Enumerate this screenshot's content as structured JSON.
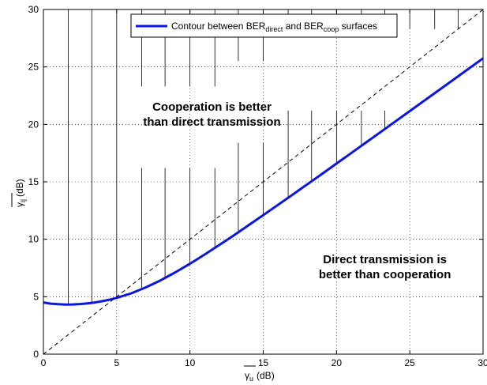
{
  "chart_data": {
    "type": "line",
    "xlim": [
      0,
      30
    ],
    "ylim": [
      0,
      30
    ],
    "xticks": [
      0,
      5,
      10,
      15,
      20,
      25,
      30
    ],
    "yticks": [
      0,
      5,
      10,
      15,
      20,
      25,
      30
    ],
    "grid": true,
    "legend_position": "top-right",
    "xlabel": {
      "symbol": "γ",
      "sub": "u",
      "unit": "(dB)"
    },
    "ylabel": {
      "symbol": "γ",
      "sub": "ij",
      "unit": "(dB)"
    },
    "legend": {
      "text1": "Contour between BER",
      "sub1": "direct",
      "text2": " and BER",
      "sub2": "coop",
      "text3": " surfaces"
    },
    "series": [
      {
        "type": "solid",
        "color": "#0a16e6",
        "x": [
          0,
          0.5,
          1,
          1.5,
          2,
          2.5,
          3,
          3.5,
          4,
          4.5,
          5,
          6,
          7,
          8,
          9,
          10,
          11,
          12,
          13,
          14,
          15,
          16,
          17,
          18,
          19,
          20,
          21,
          22,
          23,
          24,
          25,
          26,
          27,
          28,
          29,
          30
        ],
        "y": [
          4.5,
          4.4,
          4.35,
          4.32,
          4.33,
          4.36,
          4.42,
          4.5,
          4.61,
          4.74,
          4.9,
          5.3,
          5.82,
          6.43,
          7.12,
          7.87,
          8.67,
          9.5,
          10.35,
          11.22,
          12.1,
          12.99,
          13.88,
          14.78,
          15.68,
          16.59,
          17.5,
          18.41,
          19.32,
          20.24,
          21.16,
          22.07,
          22.99,
          23.91,
          24.83,
          25.75
        ]
      },
      {
        "type": "dashed",
        "color": "#000000",
        "x": [
          0,
          30
        ],
        "y": [
          0,
          30
        ]
      }
    ],
    "annotations": [
      {
        "lines": [
          "Cooperation is better",
          "than direct transmission"
        ],
        "x": 11.5,
        "y": 21.2
      },
      {
        "lines": [
          "Direct transmission is",
          "better than cooperation"
        ],
        "x": 23.3,
        "y": 7.9
      }
    ],
    "hatch_x": [
      1.7,
      3.3,
      5,
      6.7,
      8.3,
      10,
      11.7,
      13.3,
      15,
      16.7,
      18.3,
      20,
      21.7,
      23.3,
      25,
      26.7,
      28.3,
      30
    ],
    "hatch_gap_top": [
      30,
      30,
      30,
      23.3,
      23.3,
      23.3,
      23.3,
      25.5,
      25.5,
      28.3,
      28.3,
      28.3,
      28.3,
      28.3,
      28.3,
      28.3,
      28.3,
      28.3
    ]
  }
}
